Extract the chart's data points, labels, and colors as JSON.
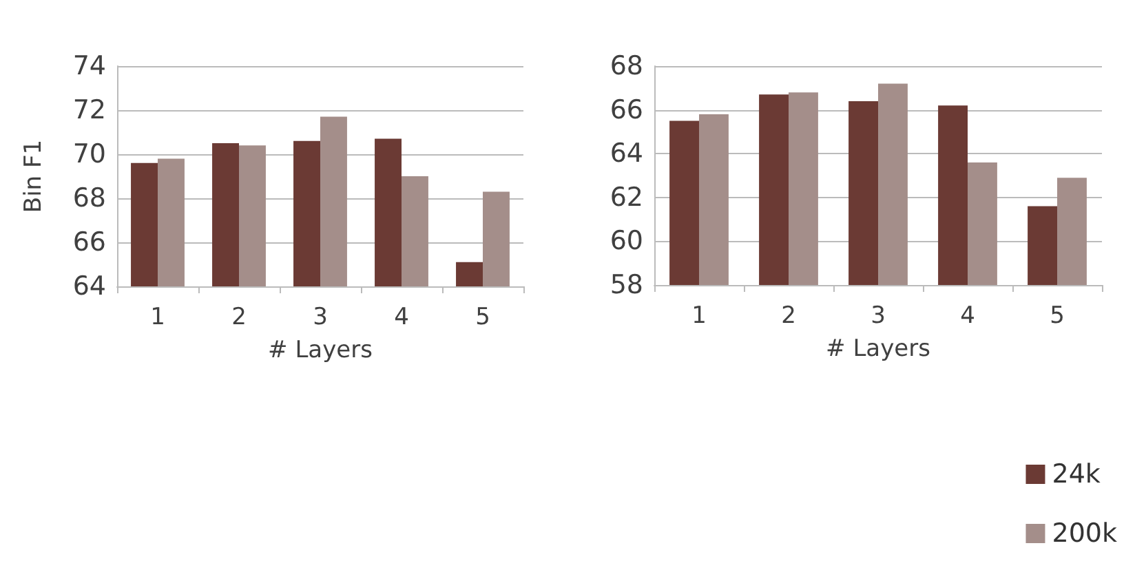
{
  "chart_data": [
    {
      "type": "bar",
      "ylabel": "Bin F1",
      "xlabel": "# Layers",
      "categories": [
        "1",
        "2",
        "3",
        "4",
        "5"
      ],
      "ylim": [
        64,
        74
      ],
      "yticks": [
        64,
        66,
        68,
        70,
        72,
        74
      ],
      "grid": "y",
      "legend": false,
      "series": [
        {
          "color": "#6b3a34",
          "values": [
            69.6,
            70.5,
            70.6,
            70.7,
            65.1
          ]
        },
        {
          "color": "#a48e8a",
          "values": [
            69.8,
            70.4,
            71.7,
            69.0,
            68.3
          ]
        }
      ]
    },
    {
      "type": "bar",
      "xlabel": "# Layers",
      "categories": [
        "1",
        "2",
        "3",
        "4",
        "5"
      ],
      "ylim": [
        58,
        68
      ],
      "yticks": [
        58,
        60,
        62,
        64,
        66,
        68
      ],
      "grid": "y",
      "legend": "bottom right",
      "series": [
        {
          "name": "24k",
          "color": "#6b3a34",
          "values": [
            65.5,
            66.7,
            66.4,
            66.2,
            61.6
          ]
        },
        {
          "name": "200k",
          "color": "#a48e8a",
          "values": [
            65.8,
            66.8,
            67.2,
            63.6,
            62.9
          ]
        }
      ]
    }
  ]
}
